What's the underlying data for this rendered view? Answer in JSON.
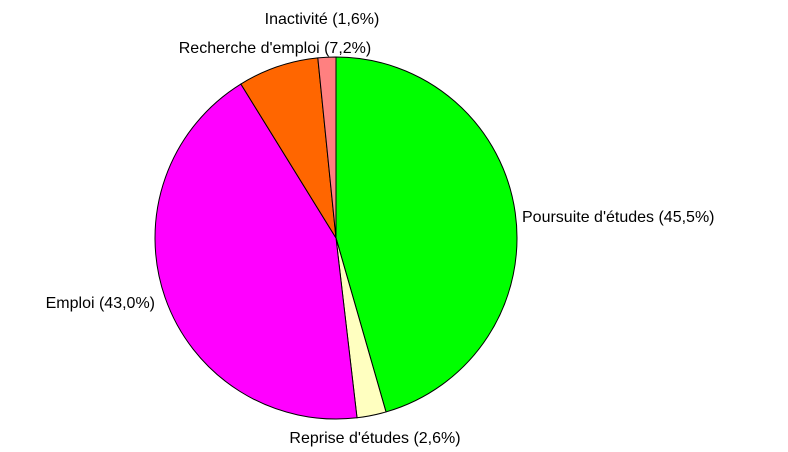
{
  "chart_data": {
    "type": "pie",
    "labels": [
      "Poursuite d'études (45,5%)",
      "Reprise d'études (2,6%)",
      "Emploi (43,0%)",
      "Recherche d'emploi (7,2%)",
      "Inactivité (1,6%)"
    ],
    "values": [
      45.5,
      2.6,
      43.0,
      7.2,
      1.6
    ],
    "colors": [
      "#00ff00",
      "#ffffc0",
      "#ff00ff",
      "#ff6600",
      "#ff8080"
    ]
  }
}
